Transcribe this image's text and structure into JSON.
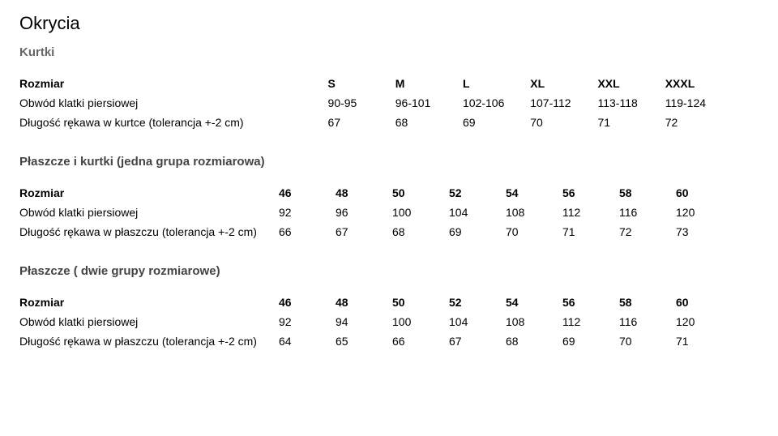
{
  "title": "Okrycia",
  "subtitle": "Kurtki",
  "table1": {
    "header_label": "Rozmiar",
    "sizes": [
      "S",
      "M",
      "L",
      "XL",
      "XXL",
      "XXXL"
    ],
    "rows": [
      {
        "label": "Obwód klatki piersiowej",
        "values": [
          "90-95",
          "96-101",
          "102-106",
          "107-112",
          "113-118",
          "119-124"
        ]
      },
      {
        "label": "Długość rękawa w kurtce (tolerancja +-2 cm)",
        "values": [
          "67",
          "68",
          "69",
          "70",
          "71",
          "72"
        ]
      }
    ]
  },
  "table2": {
    "heading": "Płaszcze i kurtki (jedna grupa rozmiarowa)",
    "header_label": "Rozmiar",
    "sizes": [
      "46",
      "48",
      "50",
      "52",
      "54",
      "56",
      "58",
      "60"
    ],
    "rows": [
      {
        "label": "Obwód klatki piersiowej",
        "values": [
          "92",
          "96",
          "100",
          "104",
          "108",
          "112",
          "116",
          "120"
        ]
      },
      {
        "label": "Długość rękawa w płaszczu (tolerancja +-2 cm)",
        "values": [
          "66",
          "67",
          "68",
          "69",
          "70",
          "71",
          "72",
          "73"
        ]
      }
    ]
  },
  "table3": {
    "heading": "Płaszcze ( dwie grupy rozmiarowe)",
    "header_label": "Rozmiar",
    "sizes": [
      "46",
      "48",
      "50",
      "52",
      "54",
      "56",
      "58",
      "60"
    ],
    "rows": [
      {
        "label": "Obwód klatki piersiowej",
        "values": [
          "92",
          "94",
          "100",
          "104",
          "108",
          "112",
          "116",
          "120"
        ]
      },
      {
        "label": "Długość rękawa w płaszczu (tolerancja +-2 cm)",
        "values": [
          "64",
          "65",
          "66",
          "67",
          "68",
          "69",
          "70",
          "71"
        ]
      }
    ]
  }
}
